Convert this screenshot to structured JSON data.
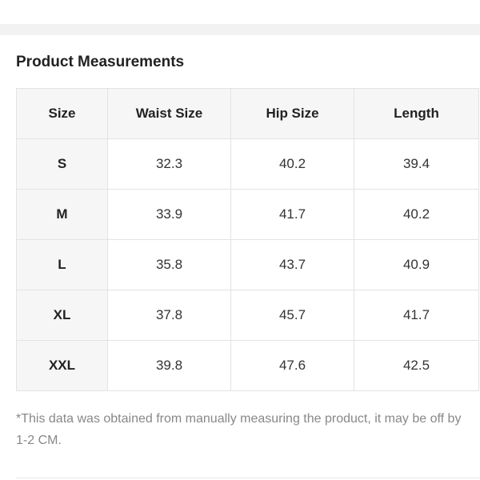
{
  "section": {
    "title": "Product Measurements"
  },
  "table": {
    "headers": [
      "Size",
      "Waist Size",
      "Hip Size",
      "Length"
    ],
    "rows": [
      {
        "size": "S",
        "waist": "32.3",
        "hip": "40.2",
        "length": "39.4"
      },
      {
        "size": "M",
        "waist": "33.9",
        "hip": "41.7",
        "length": "40.2"
      },
      {
        "size": "L",
        "waist": "35.8",
        "hip": "43.7",
        "length": "40.9"
      },
      {
        "size": "XL",
        "waist": "37.8",
        "hip": "45.7",
        "length": "41.7"
      },
      {
        "size": "XXL",
        "waist": "39.8",
        "hip": "47.6",
        "length": "42.5"
      }
    ]
  },
  "footnote": {
    "text": "*This data was obtained from manually measuring the product, it may be off by 1-2 CM."
  },
  "colors": {
    "header_background": "#f6f6f6",
    "border": "#e3e3e3",
    "footnote_text": "#888888",
    "divider_band": "#f2f2f2"
  }
}
